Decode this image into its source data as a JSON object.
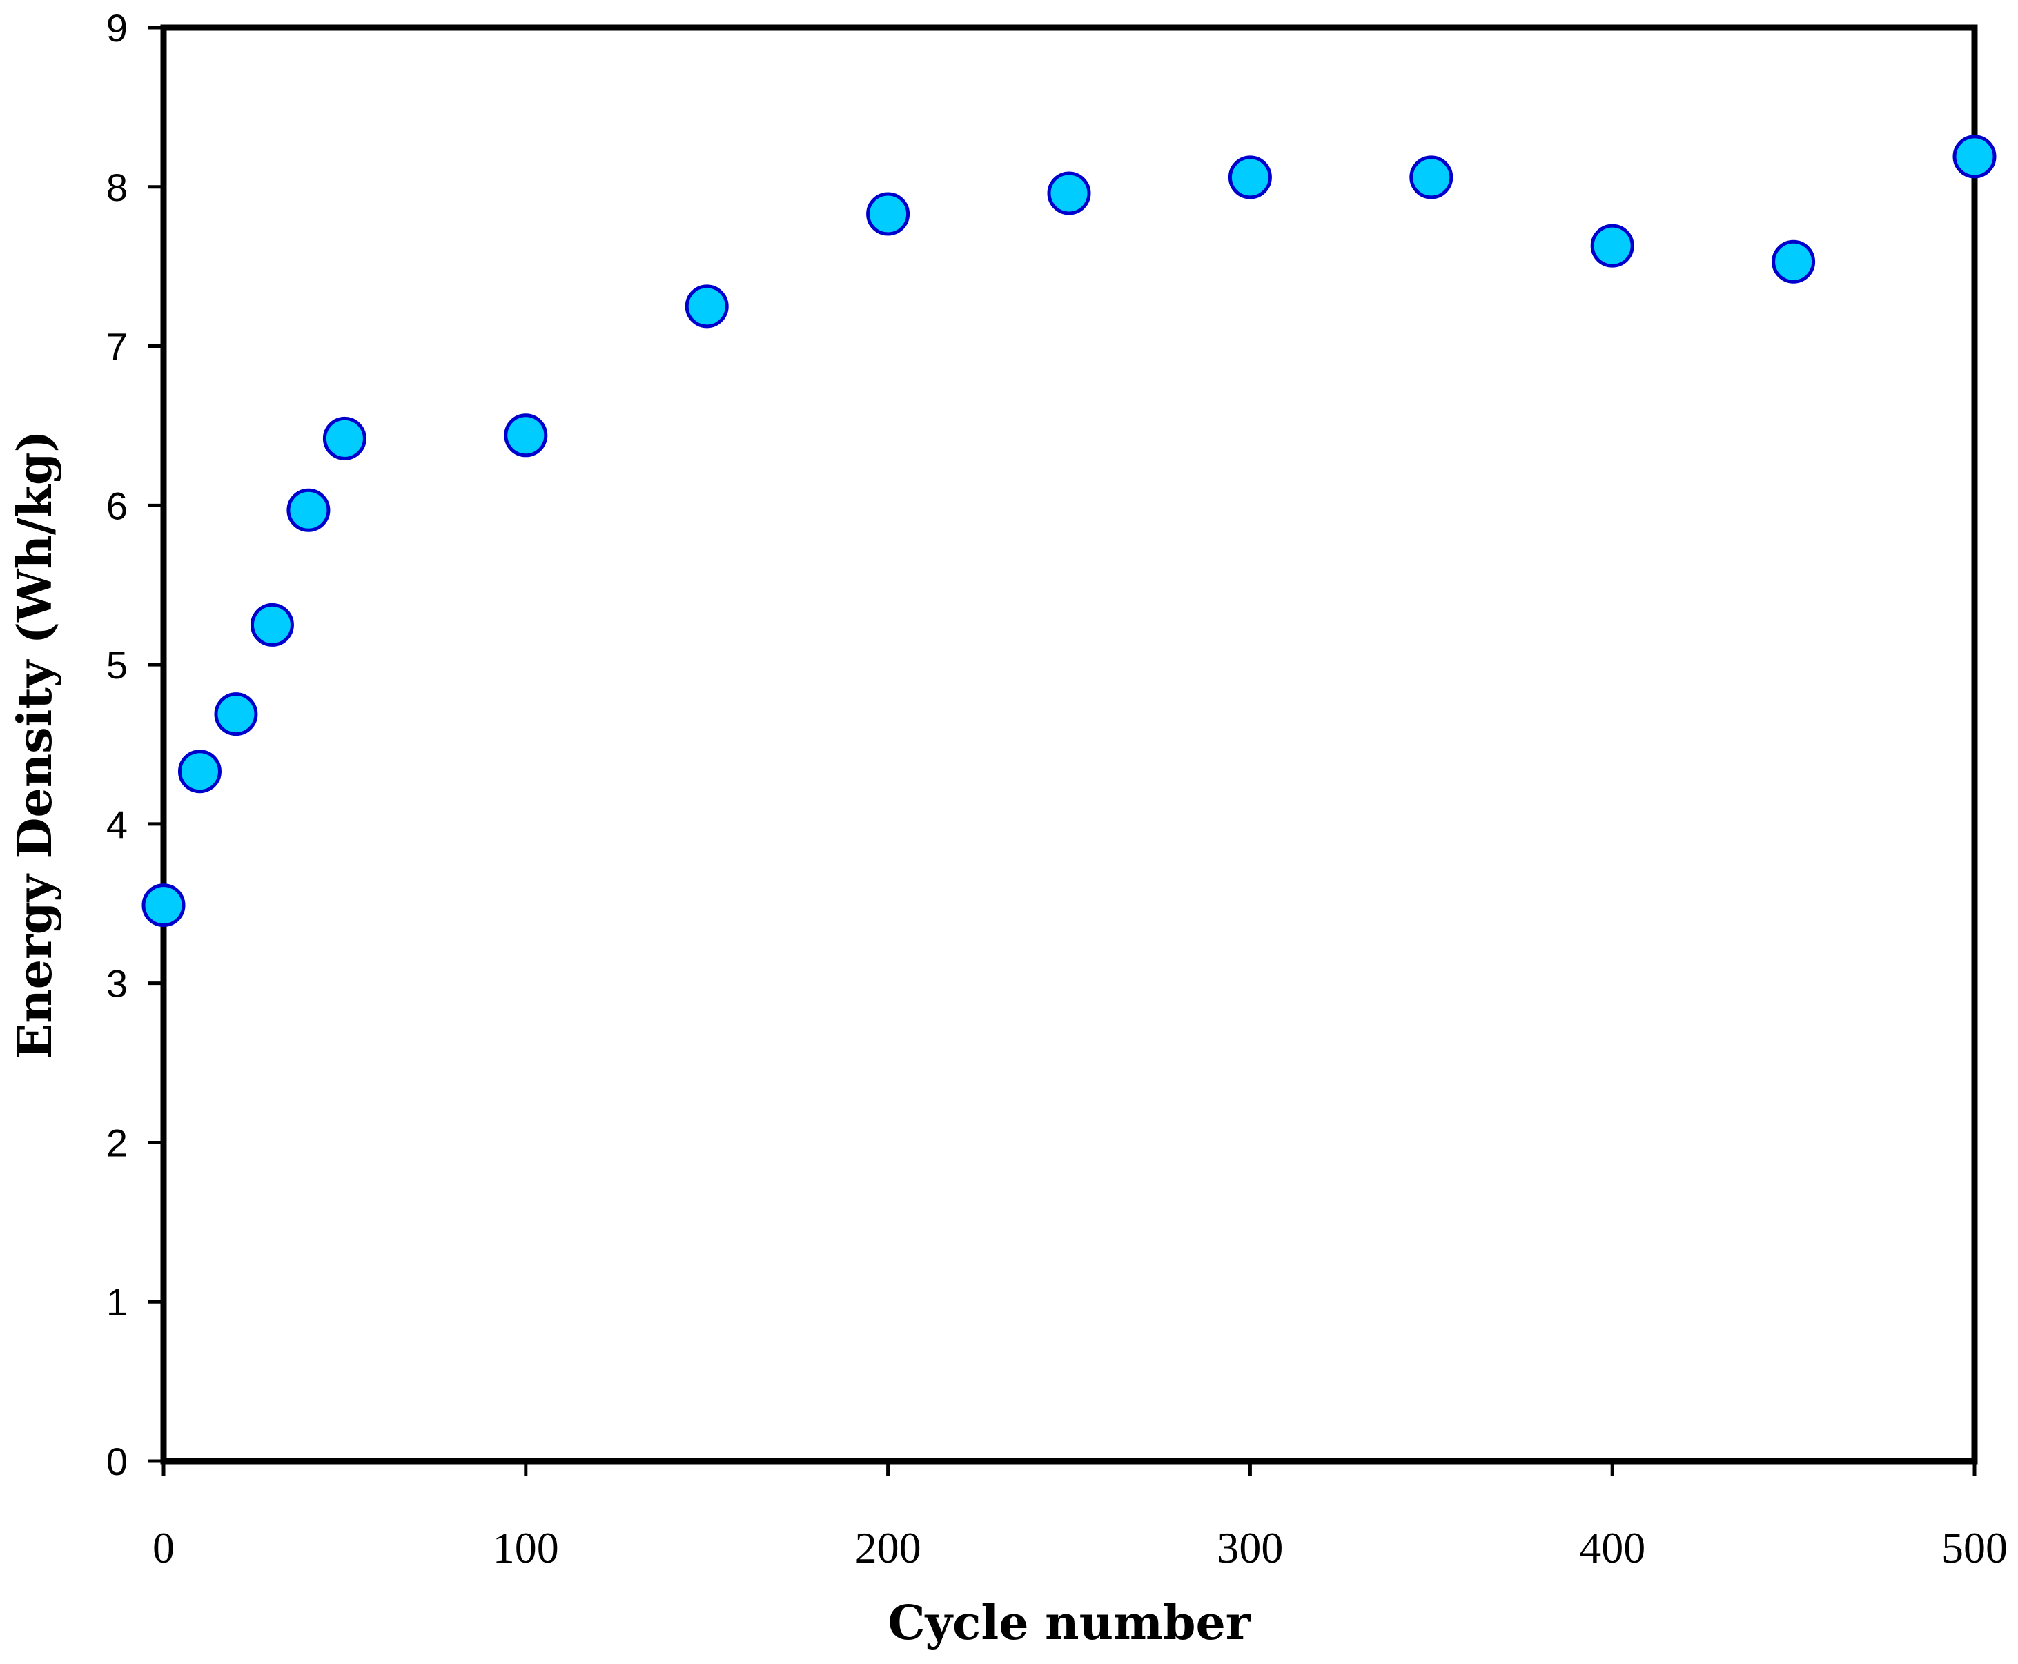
{
  "chart_data": {
    "type": "scatter",
    "title": "",
    "xlabel": "Cycle number",
    "ylabel": "Energy Density (Wh/kg)",
    "xlim": [
      0,
      500
    ],
    "ylim": [
      0,
      9
    ],
    "xticks": [
      0,
      100,
      200,
      300,
      400,
      500
    ],
    "yticks": [
      0,
      1,
      2,
      3,
      4,
      5,
      6,
      7,
      8,
      9
    ],
    "grid": false,
    "legend": "none",
    "marker_color": "#00ccff",
    "marker_edge_color": "#0000cc",
    "series": [
      {
        "x": [
          0,
          10,
          20,
          30,
          40,
          50,
          100,
          150,
          200,
          250,
          300,
          350,
          400,
          450,
          500
        ],
        "y": [
          3.49,
          4.33,
          4.69,
          5.25,
          5.97,
          6.42,
          6.44,
          7.25,
          7.83,
          7.96,
          8.06,
          8.06,
          7.63,
          7.53,
          8.19
        ]
      }
    ]
  }
}
